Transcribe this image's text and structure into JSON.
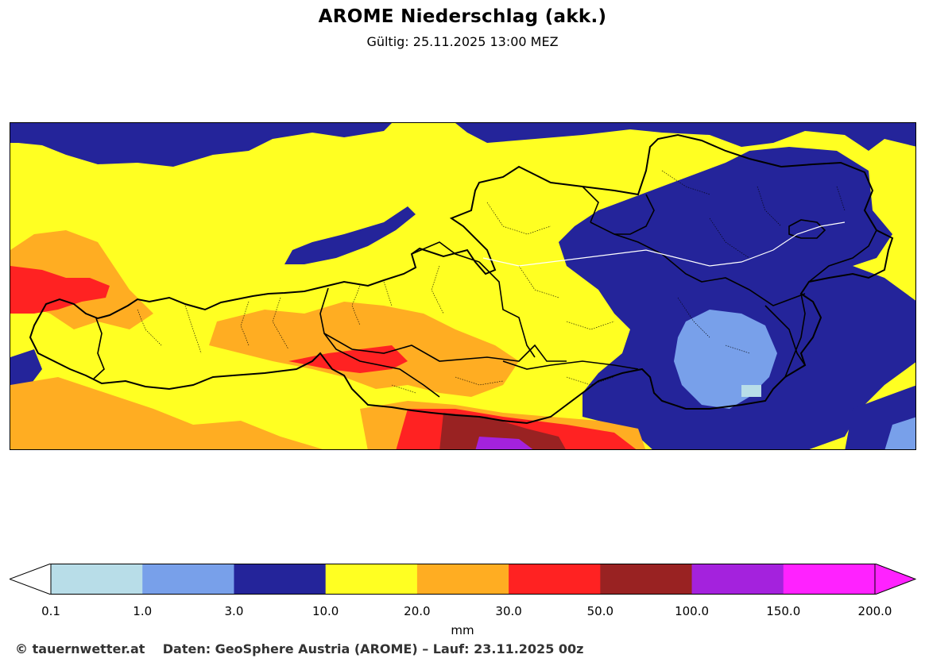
{
  "title": "AROME Niederschlag (akk.)",
  "subtitle": "Gültig: 25.11.2025 13:00 MEZ",
  "legend": {
    "unit": "mm",
    "ticks": [
      "0.1",
      "1.0",
      "3.0",
      "10.0",
      "20.0",
      "30.0",
      "50.0",
      "100.0",
      "150.0",
      "200.0"
    ],
    "bins": [
      {
        "from": 0.1,
        "to": 1.0,
        "color": "#b8dde8"
      },
      {
        "from": 1.0,
        "to": 3.0,
        "color": "#78a0ea"
      },
      {
        "from": 3.0,
        "to": 10.0,
        "color": "#24249a"
      },
      {
        "from": 10.0,
        "to": 20.0,
        "color": "#ffff22"
      },
      {
        "from": 20.0,
        "to": 30.0,
        "color": "#ffad22"
      },
      {
        "from": 30.0,
        "to": 50.0,
        "color": "#ff2222"
      },
      {
        "from": 50.0,
        "to": 100.0,
        "color": "#992222"
      },
      {
        "from": 100.0,
        "to": 150.0,
        "color": "#a422dd"
      },
      {
        "from": 150.0,
        "to": 200.0,
        "color": "#ff22ff"
      }
    ],
    "under_color": "#ffffff",
    "over_color": "#ff22ff"
  },
  "footer": {
    "credit": "© tauernwetter.at",
    "source": "Daten: GeoSphere Austria (AROME) – Lauf: 23.11.2025 00z"
  }
}
